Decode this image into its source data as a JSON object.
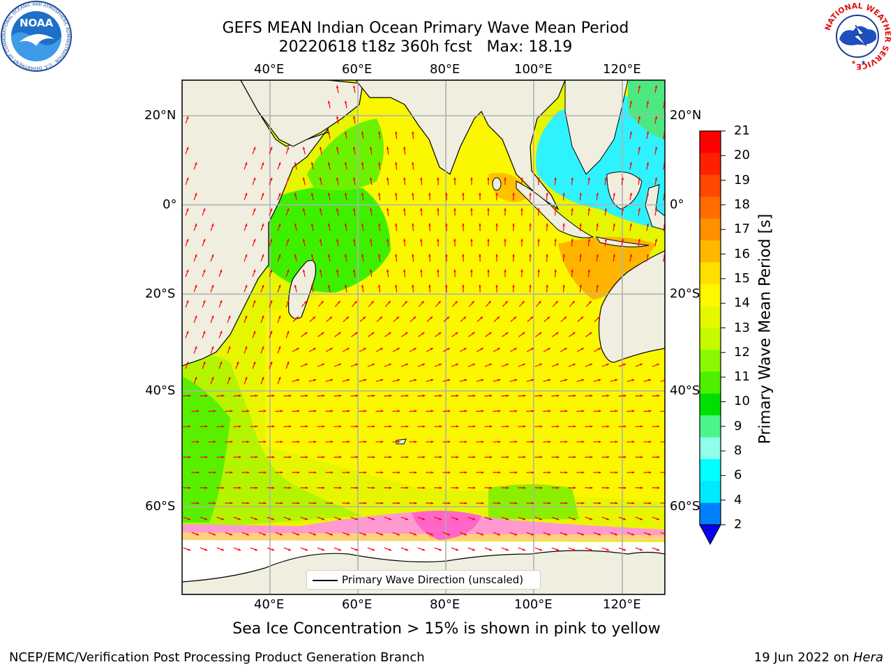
{
  "title": {
    "line1": "GEFS MEAN Indian Ocean Primary Wave Mean Period",
    "line2": "20220618 t18z 360h fcst   Max: 18.19"
  },
  "map": {
    "top_axis": [
      "40°E",
      "60°E",
      "80°E",
      "100°E",
      "120°E"
    ],
    "bottom_axis": [
      "40°E",
      "60°E",
      "80°E",
      "100°E",
      "120°E"
    ],
    "left_axis": [
      "20°N",
      "0°",
      "20°S",
      "40°S",
      "60°S"
    ],
    "right_axis": [
      "20°N",
      "0°",
      "20°S",
      "40°S",
      "60°S"
    ],
    "legend": "Primary Wave Direction (unscaled)",
    "arrow_color": "#ff0000",
    "land_color": "#efeedf"
  },
  "colorbar": {
    "title": "Primary Wave Mean Period [s]",
    "ticks": [
      "21",
      "20",
      "19",
      "18",
      "17",
      "16",
      "15",
      "14",
      "13",
      "12",
      "11",
      "10",
      "9",
      "8",
      "6",
      "4",
      "2"
    ],
    "colors": [
      "#ff0000",
      "#ff2000",
      "#ff4800",
      "#ff6c00",
      "#ff9000",
      "#ffb800",
      "#ffde00",
      "#fff700",
      "#e5f800",
      "#c5fa00",
      "#8af800",
      "#4ef000",
      "#00e000",
      "#4cf58a",
      "#8effe8",
      "#00ffff",
      "#00e9ff",
      "#0080ff"
    ],
    "extend_color": "#0a00f0"
  },
  "caption": "Sea Ice Concentration > 15% is shown in pink to yellow",
  "footer": {
    "left": "NCEP/EMC/Verification Post Processing Product Generation Branch",
    "right_prefix": "19 Jun 2022 on ",
    "right_host": "Hera"
  },
  "logos": {
    "noaa": "NOAA",
    "noaa_ring": "NATIONAL OCEANIC AND ATMOSPHERIC ADMINISTRATION · U.S. DEPARTMENT OF COMMERCE",
    "nws_ring": "NATIONAL WEATHER SERVICE"
  }
}
